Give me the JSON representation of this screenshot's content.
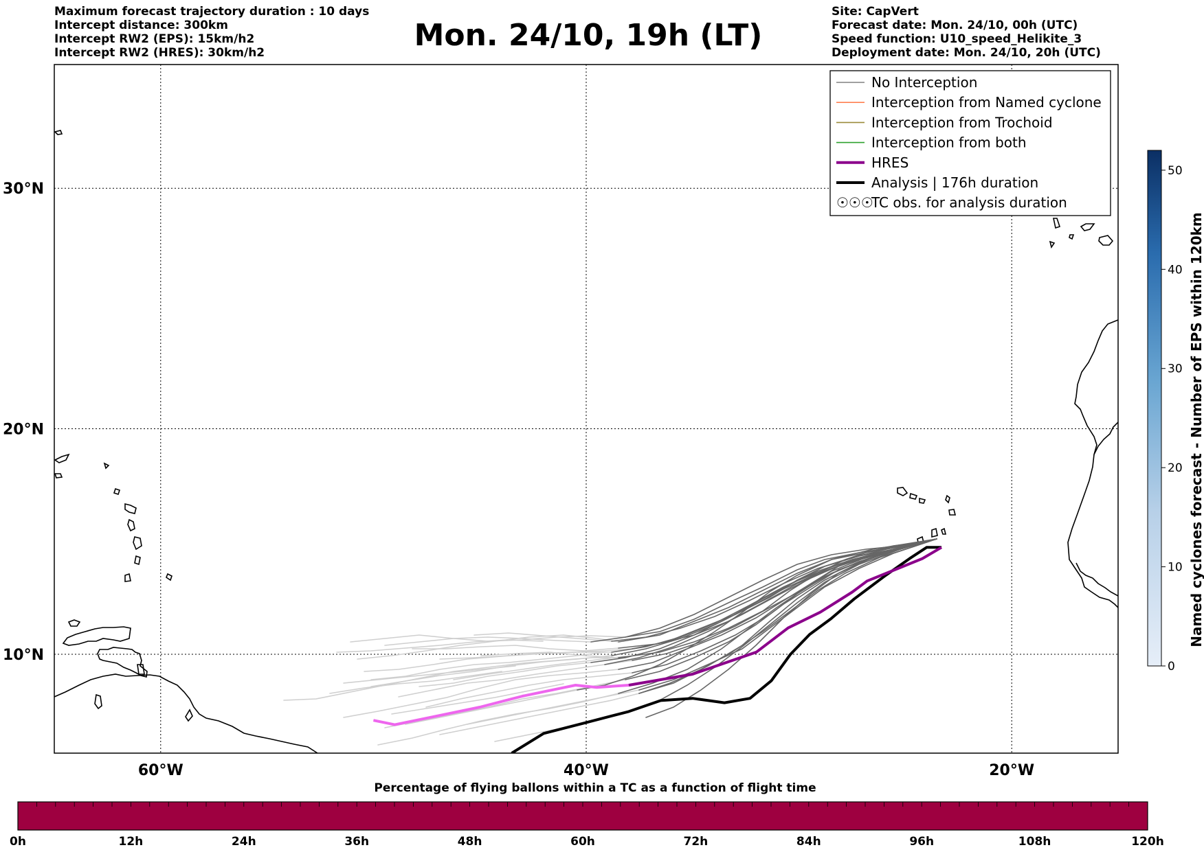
{
  "header_left": {
    "max_duration": "Maximum forecast trajectory duration : 10 days",
    "intercept_distance": "Intercept distance: 300km",
    "intercept_eps": "Intercept RW2 (EPS):  15km/h2",
    "intercept_hres": "Intercept RW2 (HRES): 30km/h2"
  },
  "title": "Mon. 24/10, 19h (LT)",
  "header_right": {
    "site": "Site: CapVert",
    "forecast_date": "Forecast date: Mon. 24/10, 00h (UTC)",
    "speed_function": "Speed function: U10_speed_Helikite_3",
    "deployment_date": "Deployment date: Mon. 24/10, 20h (UTC)"
  },
  "map": {
    "lon_range": [
      -65,
      -15
    ],
    "lat_range": [
      5.5,
      34.8
    ],
    "lat_ticks": [
      {
        "lat": 30,
        "label": "30°N"
      },
      {
        "lat": 20,
        "label": "20°N"
      },
      {
        "lat": 10,
        "label": "10°N"
      }
    ],
    "lon_ticks": [
      {
        "lon": -60,
        "label": "60°W"
      },
      {
        "lon": -40,
        "label": "40°W"
      },
      {
        "lon": -20,
        "label": "20°W"
      }
    ]
  },
  "legend": {
    "items": [
      {
        "label": "No Interception",
        "color": "#808080",
        "style": "line-thin"
      },
      {
        "label": "Interception from Named cyclone",
        "color": "#ff7f50",
        "style": "line-thin"
      },
      {
        "label": "Interception from Trochoid",
        "color": "#9a8a3a",
        "style": "line-thin"
      },
      {
        "label": "Interception from both",
        "color": "#2ca02c",
        "style": "line-thin"
      },
      {
        "label": "HRES",
        "color": "#8b008b",
        "style": "line-thick"
      },
      {
        "label": "Analysis | 176h duration",
        "color": "#000000",
        "style": "line-thick"
      },
      {
        "label": "TC obs. for analysis duration",
        "color": "#000000",
        "style": "tc-symbol"
      }
    ]
  },
  "colorbar_right": {
    "title": "Named cyclones forecast - Number of EPS within 120km",
    "ticks": [
      "0",
      "10",
      "20",
      "30",
      "40",
      "50"
    ],
    "range": [
      0,
      52
    ],
    "color_low": "#e6eef8",
    "color_high": "#0b2f64"
  },
  "colorbar_bottom": {
    "title": "Percentage of flying ballons within a TC as a function of flight time",
    "ticks": [
      "0h",
      "12h",
      "24h",
      "36h",
      "48h",
      "60h",
      "72h",
      "84h",
      "96h",
      "108h",
      "120h"
    ],
    "fill_color": "#9e0040"
  },
  "trajectories": {
    "hres": [
      [
        -38.0,
        8.6
      ],
      [
        -35,
        9.1
      ],
      [
        -32,
        10.1
      ],
      [
        -30.5,
        11.2
      ],
      [
        -29,
        11.9
      ],
      [
        -27.5,
        12.8
      ],
      [
        -26.8,
        13.3
      ],
      [
        -25.5,
        13.8
      ],
      [
        -24.2,
        14.3
      ],
      [
        -23.3,
        14.8
      ]
    ],
    "hres_light": [
      [
        -50,
        7.0
      ],
      [
        -49,
        6.8
      ],
      [
        -47,
        7.2
      ],
      [
        -45,
        7.6
      ],
      [
        -43,
        8.1
      ],
      [
        -42,
        8.3
      ],
      [
        -41,
        8.5
      ],
      [
        -40.5,
        8.6
      ],
      [
        -39.5,
        8.5
      ],
      [
        -38,
        8.6
      ]
    ],
    "analysis": [
      [
        -43.5,
        5.5
      ],
      [
        -42,
        6.4
      ],
      [
        -40,
        6.9
      ],
      [
        -38,
        7.4
      ],
      [
        -36.5,
        7.9
      ],
      [
        -35,
        8.0
      ],
      [
        -33.5,
        7.8
      ],
      [
        -32.3,
        8.0
      ],
      [
        -31.3,
        8.8
      ],
      [
        -30.4,
        10.0
      ],
      [
        -29.5,
        10.9
      ],
      [
        -28.5,
        11.6
      ],
      [
        -27.4,
        12.5
      ],
      [
        -26.0,
        13.5
      ],
      [
        -24.8,
        14.3
      ],
      [
        -24.0,
        14.8
      ],
      [
        -23.3,
        14.8
      ]
    ]
  }
}
